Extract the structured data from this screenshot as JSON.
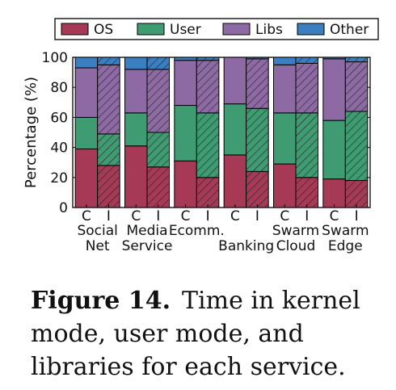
{
  "chart_data": {
    "type": "bar",
    "stacked": true,
    "ylabel": "Percentage (%)",
    "ylim": [
      0,
      100
    ],
    "yticks": [
      0,
      20,
      40,
      60,
      80,
      100
    ],
    "legend": {
      "placement": "top",
      "entries": [
        "OS",
        "User",
        "Libs",
        "Other"
      ]
    },
    "colors": {
      "OS": "#a63a56",
      "User": "#3f9b72",
      "Libs": "#8e6aa4",
      "Other": "#3b7fc1"
    },
    "bar_labels": [
      "C",
      "I",
      "C",
      "I",
      "C",
      "I",
      "C",
      "I",
      "C",
      "I",
      "C",
      "I"
    ],
    "hatched_label": "I",
    "groups": [
      {
        "line1": "Social",
        "line2": "Net"
      },
      {
        "line1": "Media",
        "line2": "Service"
      },
      {
        "line1": "Ecomm.",
        "line2": ""
      },
      {
        "line1": "",
        "line2": "Banking"
      },
      {
        "line1": "Swarm",
        "line2": "Cloud"
      },
      {
        "line1": "Swarm",
        "line2": "Edge"
      }
    ],
    "series": [
      {
        "name": "OS",
        "values": [
          39,
          28,
          41,
          27,
          31,
          20,
          35,
          24,
          29,
          20,
          19,
          18
        ]
      },
      {
        "name": "User",
        "values": [
          21,
          21,
          22,
          23,
          37,
          43,
          34,
          42,
          34,
          43,
          39,
          46
        ]
      },
      {
        "name": "Libs",
        "values": [
          33,
          46,
          29,
          42,
          30,
          35,
          31,
          33,
          32,
          33,
          41,
          33
        ]
      },
      {
        "name": "Other",
        "values": [
          7,
          5,
          8,
          8,
          2,
          2,
          0,
          1,
          5,
          4,
          1,
          3
        ]
      }
    ]
  },
  "caption": {
    "label": "Figure 14.",
    "text": "Time in kernel mode, user mode, and libraries for each service."
  }
}
